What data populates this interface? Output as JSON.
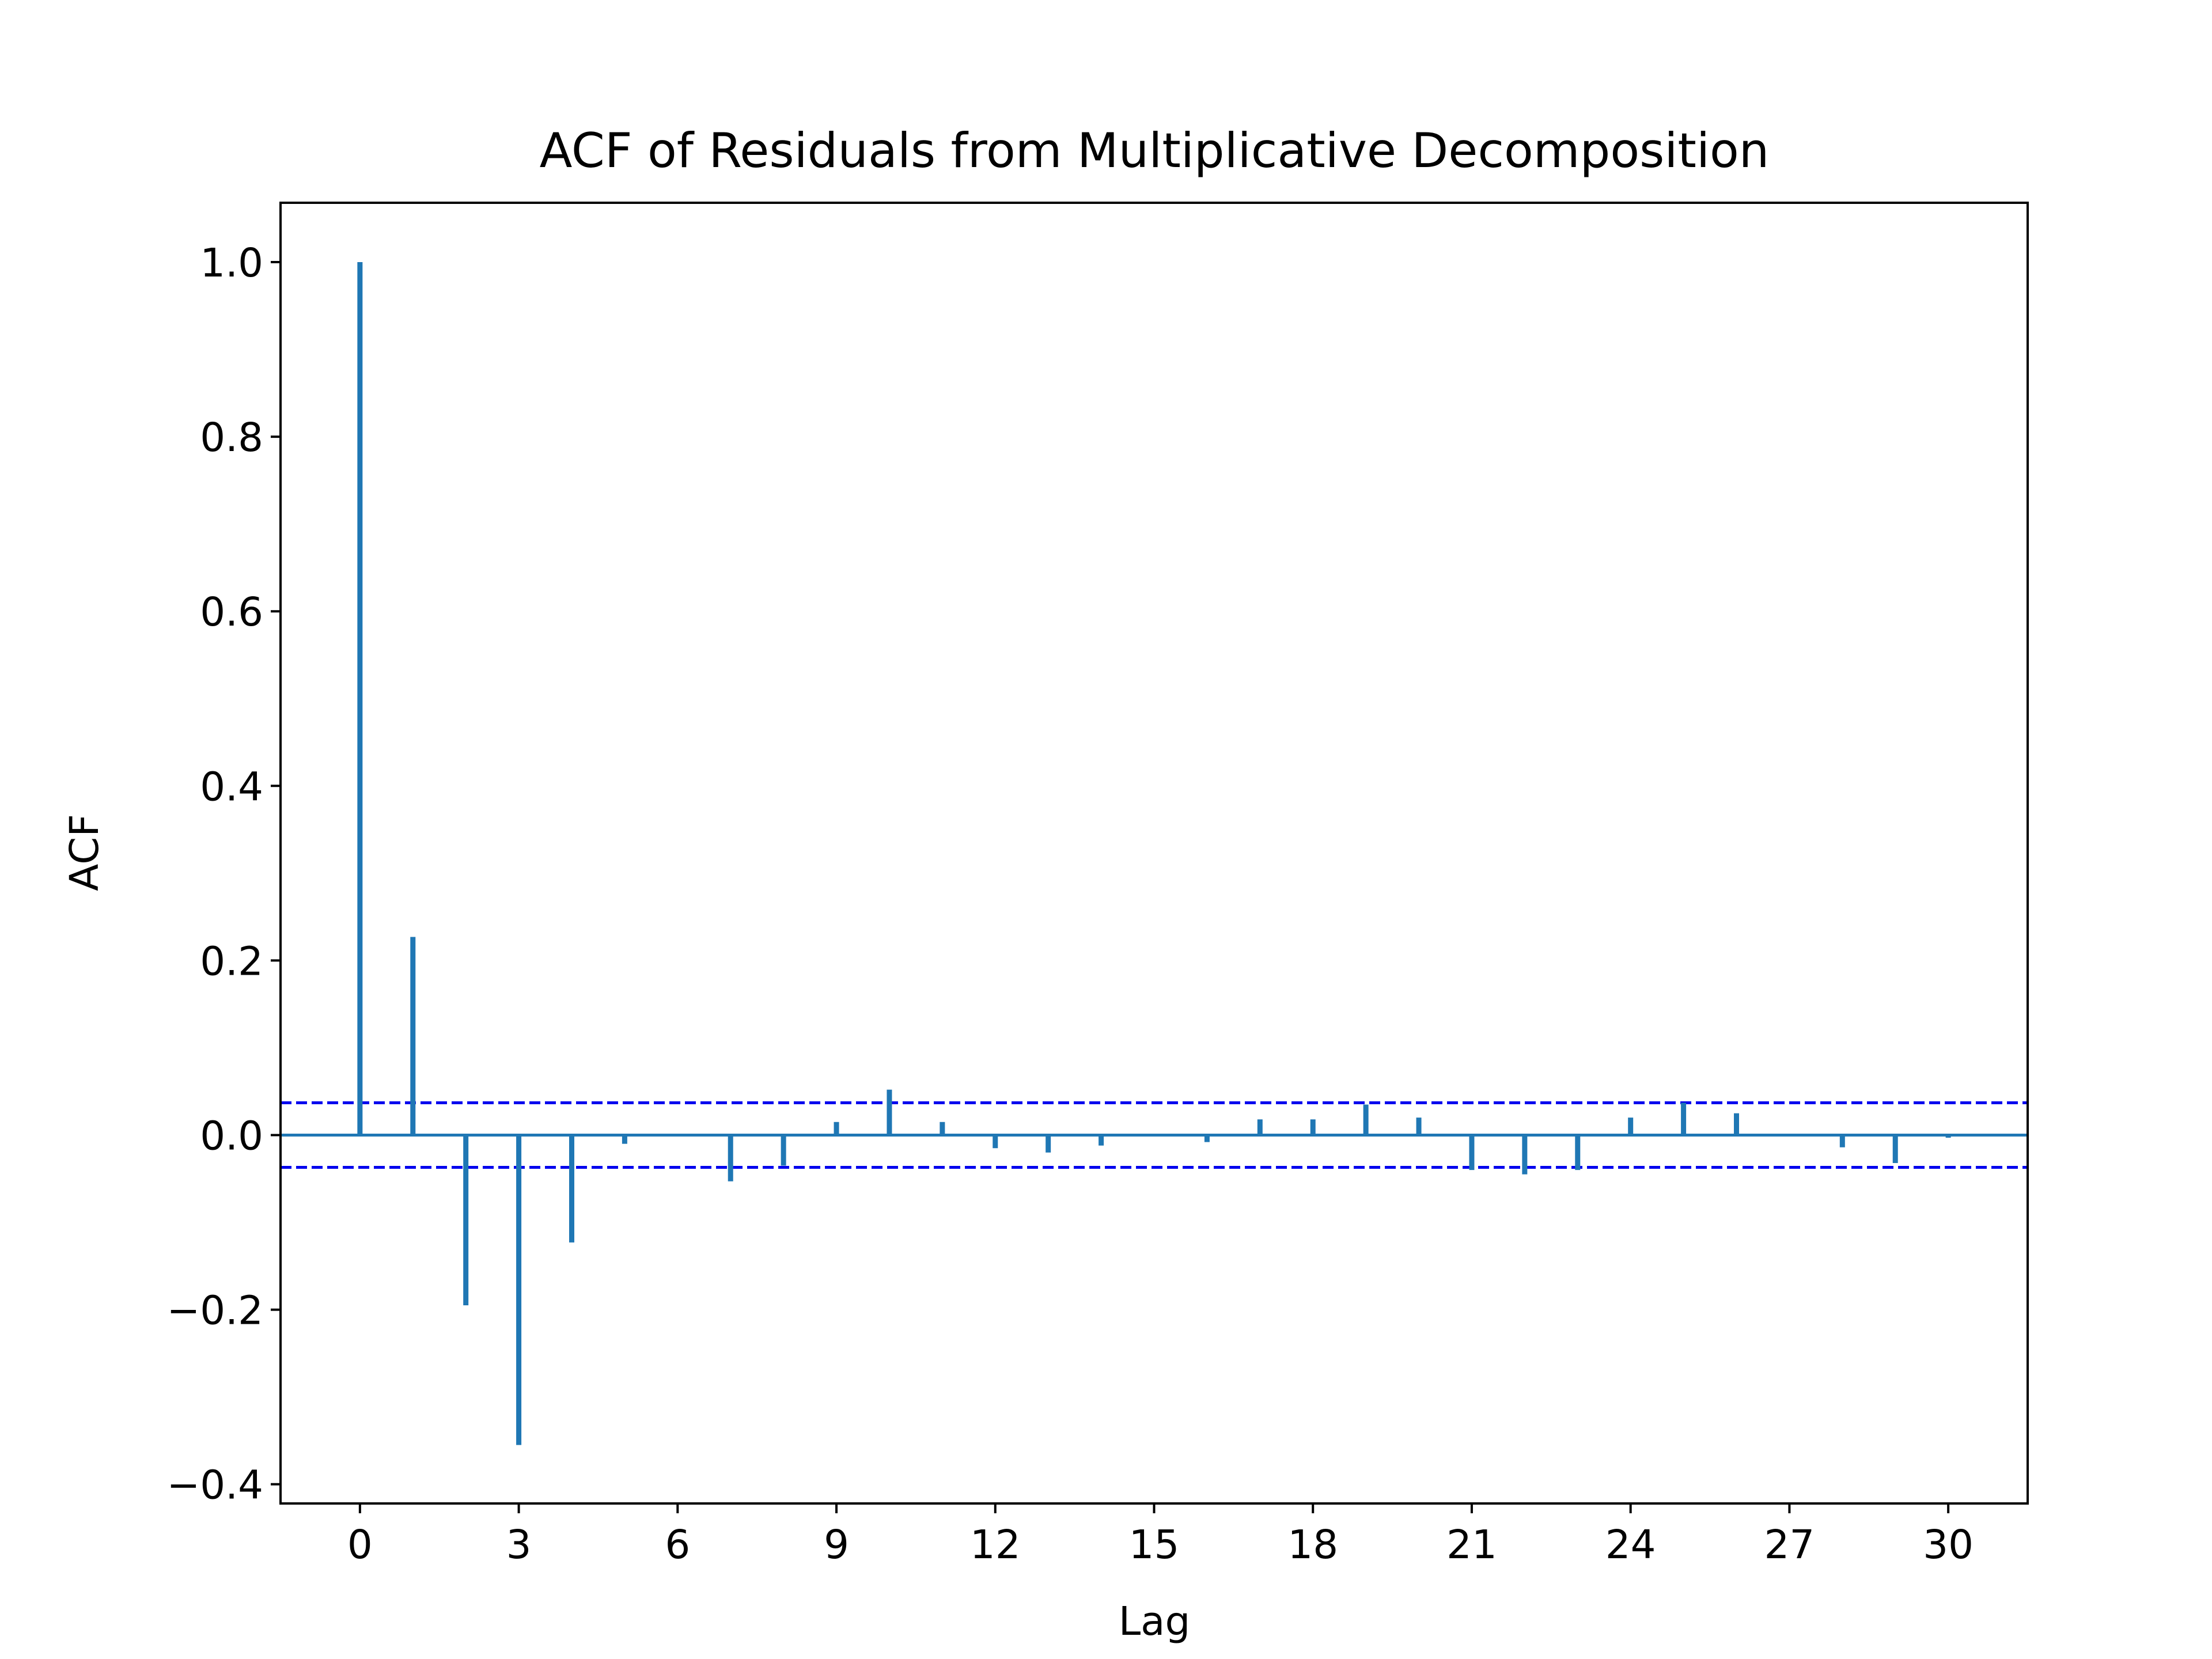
{
  "chart_data": {
    "type": "bar",
    "title": "ACF of Residuals from Multiplicative Decomposition",
    "xlabel": "Lag",
    "ylabel": "ACF",
    "x": [
      0,
      1,
      2,
      3,
      4,
      5,
      6,
      7,
      8,
      9,
      10,
      11,
      12,
      13,
      14,
      15,
      16,
      17,
      18,
      19,
      20,
      21,
      22,
      23,
      24,
      25,
      26,
      27,
      28,
      29,
      30
    ],
    "values": [
      1.0,
      0.227,
      -0.195,
      -0.355,
      -0.123,
      -0.01,
      0.0,
      -0.053,
      -0.035,
      0.015,
      0.052,
      0.015,
      -0.015,
      -0.02,
      -0.012,
      0.0,
      -0.008,
      0.018,
      0.018,
      0.035,
      0.02,
      -0.04,
      -0.045,
      -0.04,
      0.02,
      0.037,
      0.025,
      0.0,
      -0.014,
      -0.032,
      -0.003
    ],
    "confidence_bound": 0.037,
    "xlim": [
      -1.5,
      31.5
    ],
    "ylim": [
      -0.422,
      1.068
    ],
    "xticks": [
      "0",
      "3",
      "6",
      "9",
      "12",
      "15",
      "18",
      "21",
      "24",
      "27",
      "30"
    ],
    "yticks": [
      "1.0",
      "0.8",
      "0.6",
      "0.4",
      "0.2",
      "0.0",
      "−0.2",
      "−0.4"
    ],
    "grid": false,
    "colors": {
      "stem": "#1f77b4",
      "baseline": "#1f77b4",
      "confidence": "#0000ee",
      "axes": "#000000"
    }
  }
}
